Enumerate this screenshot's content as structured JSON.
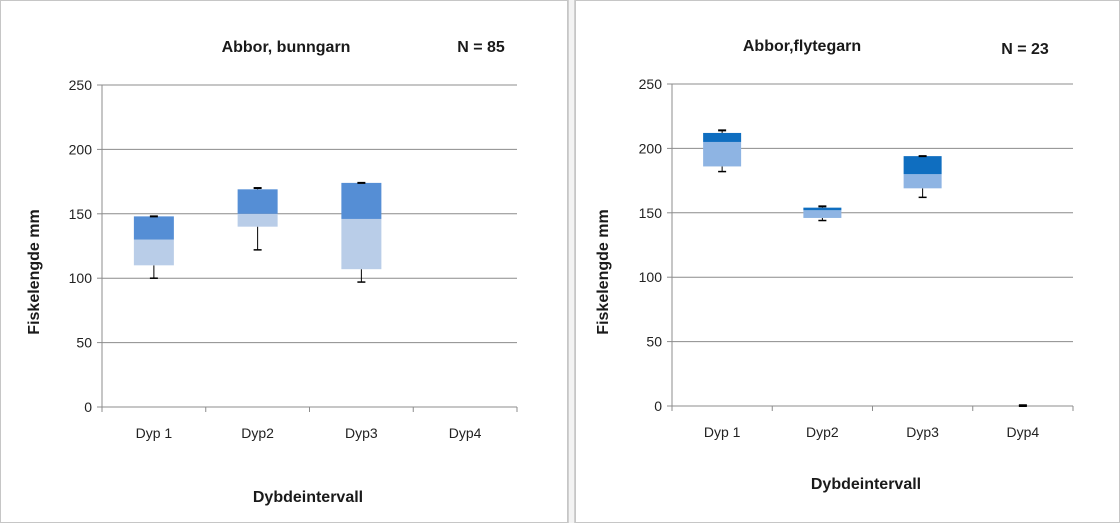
{
  "chart_data": [
    {
      "type": "bar",
      "subtype": "stacked-box",
      "title": "Abbor, bunngarn",
      "annotation": "N = 85",
      "xlabel": "Dybdeintervall",
      "ylabel": "Fiskelengde  mm",
      "ylim": [
        0,
        250
      ],
      "yticks": [
        0,
        50,
        100,
        150,
        200,
        250
      ],
      "grid": true,
      "categories": [
        "Dyp 1",
        "Dyp2",
        "Dyp3",
        "Dyp4"
      ],
      "boxes": [
        {
          "category": "Dyp 1",
          "q1": 110,
          "median": 130,
          "q3": 148,
          "whisker_low": 100,
          "whisker_high": 148
        },
        {
          "category": "Dyp2",
          "q1": 140,
          "median": 150,
          "q3": 169,
          "whisker_low": 122,
          "whisker_high": 170
        },
        {
          "category": "Dyp3",
          "q1": 107,
          "median": 146,
          "q3": 174,
          "whisker_low": 97,
          "whisker_high": 174
        },
        {
          "category": "Dyp4",
          "q1": null,
          "median": null,
          "q3": null,
          "whisker_low": null,
          "whisker_high": null
        }
      ],
      "colors": {
        "lower_box": "#b9cde8",
        "upper_box": "#558ed5",
        "whisker": "#000000",
        "grid": "#8c8c8c"
      }
    },
    {
      "type": "bar",
      "subtype": "stacked-box",
      "title": "Abbor,flytegarn",
      "annotation": "N = 23",
      "xlabel": "Dybdeintervall",
      "ylabel": "Fiskelengde  mm",
      "ylim": [
        0,
        250
      ],
      "yticks": [
        0,
        50,
        100,
        150,
        200,
        250
      ],
      "grid": true,
      "categories": [
        "Dyp 1",
        "Dyp2",
        "Dyp3",
        "Dyp4"
      ],
      "boxes": [
        {
          "category": "Dyp 1",
          "q1": 186,
          "median": 205,
          "q3": 212,
          "whisker_low": 182,
          "whisker_high": 214
        },
        {
          "category": "Dyp2",
          "q1": 146,
          "median": 152,
          "q3": 154,
          "whisker_low": 144,
          "whisker_high": 155
        },
        {
          "category": "Dyp3",
          "q1": 169,
          "median": 180,
          "q3": 194,
          "whisker_low": 162,
          "whisker_high": 194
        },
        {
          "category": "Dyp4",
          "q1": 0,
          "median": 0,
          "q3": 0,
          "whisker_low": 0,
          "whisker_high": 0
        }
      ],
      "colors": {
        "lower_box": "#8eb4e3",
        "upper_box": "#0f6ec0",
        "whisker": "#000000",
        "grid": "#8c8c8c"
      }
    }
  ]
}
